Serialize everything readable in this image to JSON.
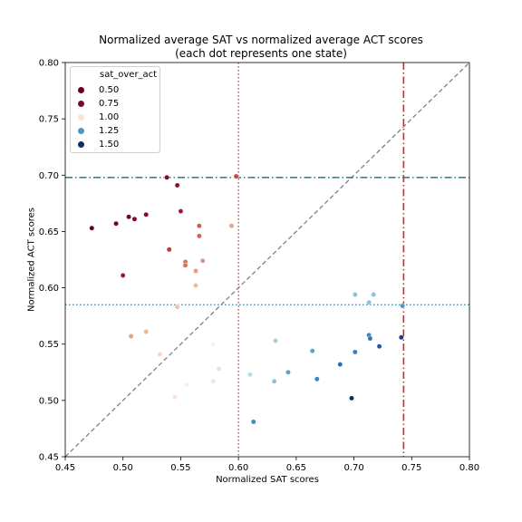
{
  "chart_data": {
    "type": "scatter",
    "title": "Normalized average SAT vs normalized average ACT scores",
    "subtitle": "(each dot represents one state)",
    "xlabel": "Normalized SAT scores",
    "ylabel": "Normalized ACT scores",
    "xlim": [
      0.45,
      0.8
    ],
    "ylim": [
      0.45,
      0.8
    ],
    "xticks": [
      "0.45",
      "0.50",
      "0.55",
      "0.60",
      "0.65",
      "0.70",
      "0.75",
      "0.80"
    ],
    "yticks": [
      "0.45",
      "0.50",
      "0.55",
      "0.60",
      "0.65",
      "0.70",
      "0.75",
      "0.80"
    ],
    "grid": false,
    "legend": {
      "title": "sat_over_act",
      "placement": "top-left",
      "entries": [
        {
          "label": "0.50",
          "color": "#67001f"
        },
        {
          "label": "0.75",
          "color": "#7a0b28"
        },
        {
          "label": "1.00",
          "color": "#fbe3d6"
        },
        {
          "label": "1.25",
          "color": "#4e98c6"
        },
        {
          "label": "1.50",
          "color": "#0d2f5c"
        }
      ]
    },
    "reference_lines": {
      "diagonal": {
        "from": [
          0.45,
          0.45
        ],
        "to": [
          0.8,
          0.8
        ],
        "color": "#808080",
        "style": "dashed"
      },
      "vertical_dotted": {
        "x": 0.6,
        "color": "#d62728",
        "style": "dotted"
      },
      "vertical_dashdot": {
        "x": 0.743,
        "color": "#d62728",
        "style": "dashdot"
      },
      "horizontal_dashdot": {
        "y": 0.698,
        "color": "#3a7f94",
        "style": "dashdot"
      },
      "horizontal_dotted": {
        "y": 0.585,
        "color": "#3a7f94",
        "style": "dotted"
      }
    },
    "points": [
      {
        "x": 0.473,
        "y": 0.653,
        "c": "#67001f"
      },
      {
        "x": 0.494,
        "y": 0.657,
        "c": "#6d0424"
      },
      {
        "x": 0.5,
        "y": 0.611,
        "c": "#a0182f"
      },
      {
        "x": 0.505,
        "y": 0.663,
        "c": "#730626"
      },
      {
        "x": 0.51,
        "y": 0.661,
        "c": "#790a27"
      },
      {
        "x": 0.52,
        "y": 0.665,
        "c": "#820d2a"
      },
      {
        "x": 0.538,
        "y": 0.698,
        "c": "#7a0b28"
      },
      {
        "x": 0.547,
        "y": 0.691,
        "c": "#8c112c"
      },
      {
        "x": 0.55,
        "y": 0.668,
        "c": "#a11a30"
      },
      {
        "x": 0.54,
        "y": 0.634,
        "c": "#b93a3a"
      },
      {
        "x": 0.598,
        "y": 0.699,
        "c": "#c2463f"
      },
      {
        "x": 0.566,
        "y": 0.655,
        "c": "#cd5e4c"
      },
      {
        "x": 0.566,
        "y": 0.646,
        "c": "#cf6650"
      },
      {
        "x": 0.594,
        "y": 0.655,
        "c": "#eba482"
      },
      {
        "x": 0.554,
        "y": 0.623,
        "c": "#d96f56"
      },
      {
        "x": 0.554,
        "y": 0.62,
        "c": "#da7257"
      },
      {
        "x": 0.569,
        "y": 0.624,
        "c": "#e69478"
      },
      {
        "x": 0.563,
        "y": 0.615,
        "c": "#ea9c7e"
      },
      {
        "x": 0.563,
        "y": 0.602,
        "c": "#f1b89c"
      },
      {
        "x": 0.547,
        "y": 0.583,
        "c": "#f4c3a8"
      },
      {
        "x": 0.507,
        "y": 0.557,
        "c": "#ec9d7f"
      },
      {
        "x": 0.52,
        "y": 0.561,
        "c": "#f1b597"
      },
      {
        "x": 0.532,
        "y": 0.541,
        "c": "#f9d7c5"
      },
      {
        "x": 0.545,
        "y": 0.503,
        "c": "#fbe3d6"
      },
      {
        "x": 0.555,
        "y": 0.514,
        "c": "#f5f1ef"
      },
      {
        "x": 0.578,
        "y": 0.55,
        "c": "#f7f3f0"
      },
      {
        "x": 0.578,
        "y": 0.517,
        "c": "#ddebf2"
      },
      {
        "x": 0.583,
        "y": 0.528,
        "c": "#d6e7f1"
      },
      {
        "x": 0.61,
        "y": 0.523,
        "c": "#bcdaea"
      },
      {
        "x": 0.632,
        "y": 0.553,
        "c": "#a9cfe5"
      },
      {
        "x": 0.631,
        "y": 0.517,
        "c": "#8fc2dd"
      },
      {
        "x": 0.643,
        "y": 0.525,
        "c": "#5ea3cb"
      },
      {
        "x": 0.664,
        "y": 0.544,
        "c": "#5aa1cb"
      },
      {
        "x": 0.668,
        "y": 0.519,
        "c": "#3987bf"
      },
      {
        "x": 0.613,
        "y": 0.481,
        "c": "#3f8cc2"
      },
      {
        "x": 0.688,
        "y": 0.532,
        "c": "#2c6fb0"
      },
      {
        "x": 0.698,
        "y": 0.502,
        "c": "#0d2f5c"
      },
      {
        "x": 0.701,
        "y": 0.543,
        "c": "#3881be"
      },
      {
        "x": 0.713,
        "y": 0.558,
        "c": "#3a86c0"
      },
      {
        "x": 0.714,
        "y": 0.555,
        "c": "#3376b6"
      },
      {
        "x": 0.722,
        "y": 0.548,
        "c": "#215d9c"
      },
      {
        "x": 0.701,
        "y": 0.594,
        "c": "#8ec2dd"
      },
      {
        "x": 0.713,
        "y": 0.587,
        "c": "#8ec2dd"
      },
      {
        "x": 0.717,
        "y": 0.594,
        "c": "#8fc3de"
      },
      {
        "x": 0.742,
        "y": 0.584,
        "c": "#4e98c6"
      },
      {
        "x": 0.741,
        "y": 0.556,
        "c": "#13407a"
      }
    ]
  }
}
